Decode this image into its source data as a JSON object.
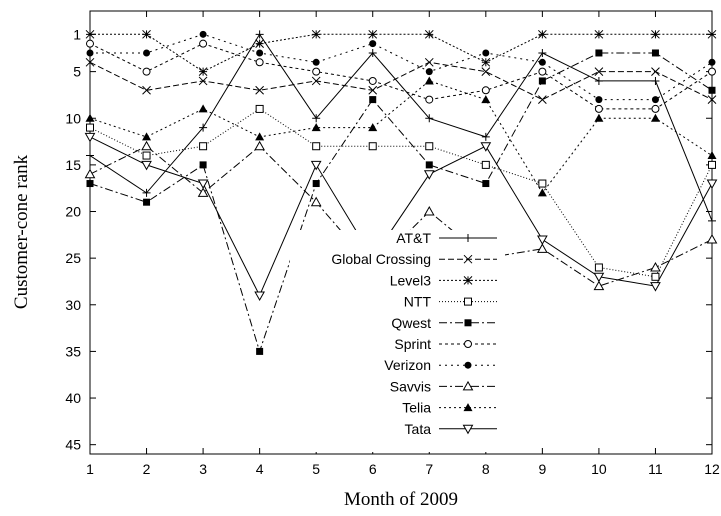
{
  "chart_data": {
    "type": "line",
    "xlabel": "Month of 2009",
    "ylabel": "Customer-cone rank",
    "x": [
      1,
      2,
      3,
      4,
      5,
      6,
      7,
      8,
      9,
      10,
      11,
      12
    ],
    "xlim": [
      1,
      12
    ],
    "ylim": [
      46,
      -1.5
    ],
    "y_inverted": true,
    "x_ticks": [
      1,
      2,
      3,
      4,
      5,
      6,
      7,
      8,
      9,
      10,
      11,
      12
    ],
    "y_ticks": [
      1,
      5,
      10,
      15,
      20,
      25,
      30,
      35,
      40,
      45
    ],
    "grid": false,
    "legend_position": "center",
    "series": [
      {
        "name": "AT&T",
        "dash": "solid",
        "marker": "plus",
        "values": [
          14,
          18,
          11,
          1,
          10,
          3,
          10,
          12,
          3,
          6,
          6,
          21
        ]
      },
      {
        "name": "Global Crossing",
        "dash": "6,3",
        "marker": "x",
        "values": [
          4,
          7,
          6,
          7,
          6,
          7,
          4,
          5,
          8,
          5,
          5,
          8
        ]
      },
      {
        "name": "Level3",
        "dash": "2,2",
        "marker": "star",
        "values": [
          1,
          1,
          5,
          2,
          1,
          1,
          1,
          4,
          1,
          1,
          1,
          1
        ]
      },
      {
        "name": "NTT",
        "dash": "1,2",
        "marker": "square-open",
        "values": [
          11,
          14,
          13,
          9,
          13,
          13,
          13,
          15,
          17,
          26,
          27,
          15
        ]
      },
      {
        "name": "Qwest",
        "dash": "8,3,2,3",
        "marker": "square-filled",
        "values": [
          17,
          19,
          15,
          35,
          17,
          8,
          15,
          17,
          6,
          3,
          3,
          7
        ]
      },
      {
        "name": "Sprint",
        "dash": "3,3",
        "marker": "circle-open",
        "values": [
          2,
          5,
          2,
          4,
          5,
          6,
          8,
          7,
          5,
          9,
          9,
          5
        ]
      },
      {
        "name": "Verizon",
        "dash": "2,4",
        "marker": "circle-filled",
        "values": [
          3,
          3,
          1,
          3,
          4,
          2,
          5,
          3,
          4,
          8,
          8,
          4
        ]
      },
      {
        "name": "Savvis",
        "dash": "8,3,2,3",
        "marker": "triangle-open",
        "values": [
          16,
          13,
          18,
          13,
          19,
          26,
          20,
          25,
          24,
          28,
          26,
          23
        ]
      },
      {
        "name": "Telia",
        "dash": "2,3",
        "marker": "triangle-filled",
        "values": [
          10,
          12,
          9,
          12,
          11,
          11,
          6,
          8,
          18,
          10,
          10,
          14
        ]
      },
      {
        "name": "Tata",
        "dash": "solid",
        "marker": "triangle-down-open",
        "values": [
          12,
          15,
          17,
          29,
          15,
          25,
          16,
          13,
          23,
          27,
          28,
          17
        ]
      }
    ]
  }
}
